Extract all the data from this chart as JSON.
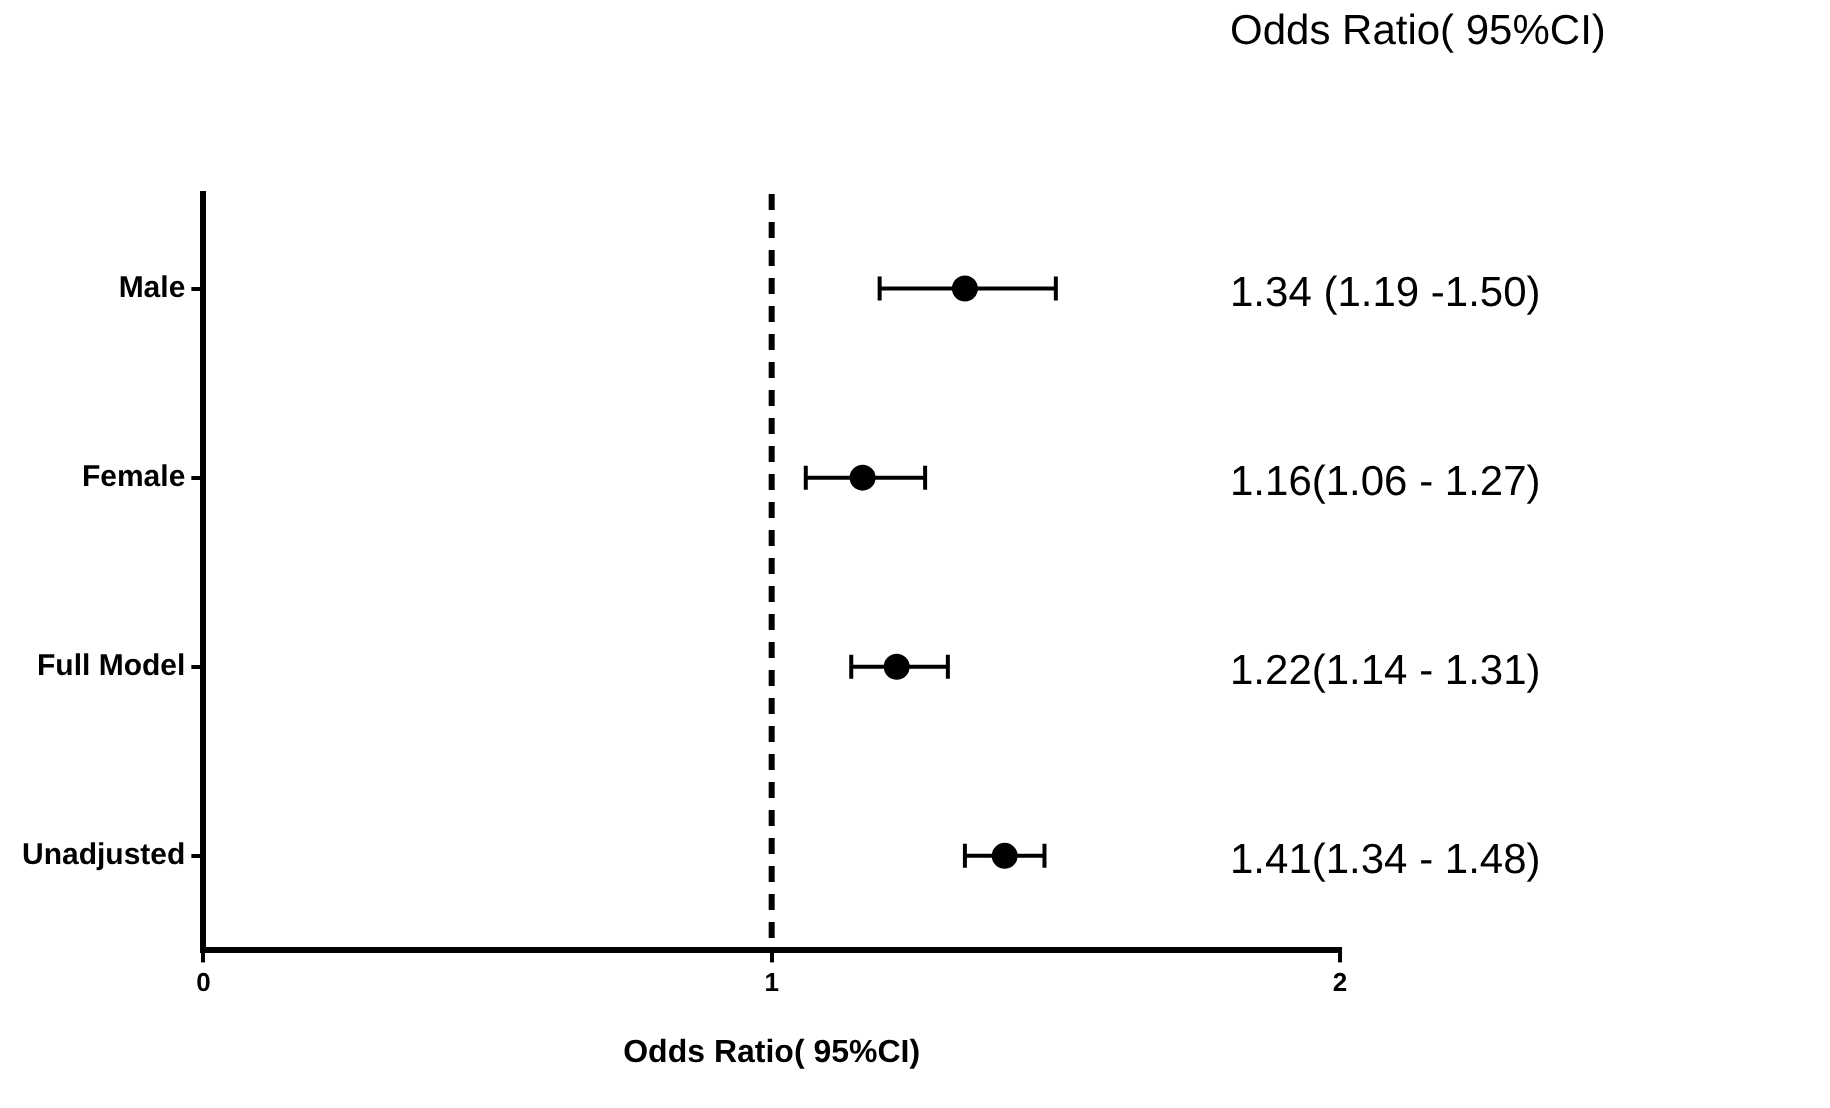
{
  "chart_data": {
    "type": "scatter",
    "orientation": "horizontal",
    "xlabel": "Odds Ratio( 95%CI)",
    "categories": [
      "Male",
      "Female",
      "Full Model",
      "Unadjusted"
    ],
    "values": [
      1.34,
      1.16,
      1.22,
      1.41
    ],
    "errors": [
      [
        1.19,
        1.5
      ],
      [
        1.06,
        1.27
      ],
      [
        1.14,
        1.31
      ],
      [
        1.34,
        1.48
      ]
    ],
    "value_labels": [
      "1.34 (1.19 -1.50)",
      "1.16(1.06 - 1.27)",
      "1.22(1.14 - 1.31)",
      "1.41(1.34 - 1.48)"
    ],
    "annotations": [
      "Odds Ratio( 95%CI)"
    ],
    "color": "#000000",
    "marker": "circle",
    "xlim": [
      0,
      2
    ],
    "xticks": [
      0,
      1,
      2
    ],
    "grid": false,
    "legend": false,
    "ref_lines": [
      {
        "axis": "x",
        "value": 1,
        "line_style": "dashed",
        "color": "#000000"
      }
    ]
  }
}
